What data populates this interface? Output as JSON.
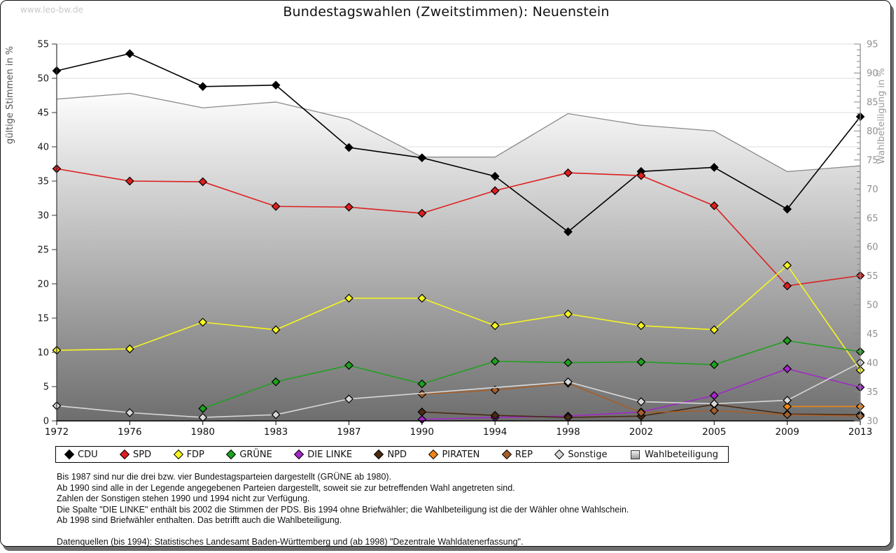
{
  "page": {
    "watermark": "www.leo-bw.de",
    "title": "Bundestagswahlen (Zweitstimmen): Neuenstein"
  },
  "chart_data": {
    "type": "line",
    "title": "Bundestagswahlen (Zweitstimmen): Neuenstein",
    "categories": [
      1972,
      1976,
      1980,
      1983,
      1987,
      1990,
      1994,
      1998,
      2002,
      2005,
      2009,
      2013
    ],
    "x_spacing": "categorical",
    "grid": true,
    "legend_position": "bottom",
    "y_left": {
      "label": "gültige Stimmen in %",
      "lim": [
        0,
        55
      ],
      "step": 5
    },
    "y_right": {
      "label": "Wahlbeteiligung in %",
      "lim": [
        30,
        95
      ],
      "step": 5,
      "minor_step": 1
    },
    "series": [
      {
        "name": "CDU",
        "axis": "left",
        "type": "line",
        "color": "#000000",
        "values": [
          51.1,
          53.6,
          48.8,
          49.0,
          39.9,
          38.4,
          35.7,
          27.6,
          36.4,
          37.0,
          30.9,
          44.4
        ]
      },
      {
        "name": "SPD",
        "axis": "left",
        "type": "line",
        "color": "#dd1f1f",
        "values": [
          36.8,
          35.0,
          34.9,
          31.3,
          31.2,
          30.3,
          33.6,
          36.2,
          35.8,
          31.4,
          19.7,
          21.2
        ]
      },
      {
        "name": "FDP",
        "axis": "left",
        "type": "line",
        "color": "#f5f520",
        "values": [
          10.3,
          10.5,
          14.4,
          13.3,
          17.9,
          17.9,
          13.9,
          15.6,
          13.9,
          13.3,
          22.7,
          7.4
        ]
      },
      {
        "name": "GRÜNE",
        "axis": "left",
        "type": "line",
        "color": "#1fa01f",
        "values": [
          null,
          null,
          1.8,
          5.7,
          8.1,
          5.4,
          8.7,
          8.5,
          8.6,
          8.2,
          11.7,
          10.1
        ]
      },
      {
        "name": "DIE LINKE",
        "axis": "left",
        "type": "line",
        "color": "#a128c8",
        "values": [
          null,
          null,
          null,
          null,
          null,
          0.2,
          0.5,
          0.7,
          1.3,
          3.7,
          7.6,
          4.9
        ]
      },
      {
        "name": "NPD",
        "axis": "left",
        "type": "line",
        "color": "#4a2a12",
        "values": [
          null,
          null,
          null,
          null,
          null,
          1.3,
          0.8,
          0.5,
          0.7,
          2.4,
          1.0,
          0.9
        ]
      },
      {
        "name": "PIRATEN",
        "axis": "left",
        "type": "line",
        "color": "#ef8615",
        "values": [
          null,
          null,
          null,
          null,
          null,
          null,
          null,
          null,
          null,
          null,
          2.1,
          2.1
        ]
      },
      {
        "name": "REP",
        "axis": "left",
        "type": "line",
        "color": "#a55f2a",
        "values": [
          null,
          null,
          null,
          null,
          null,
          3.9,
          4.5,
          5.5,
          1.2,
          1.5,
          0.9,
          0.7
        ]
      },
      {
        "name": "Sonstige",
        "axis": "left",
        "type": "line",
        "color": "#d9d9d9",
        "values": [
          2.2,
          1.2,
          0.5,
          0.9,
          3.2,
          null,
          null,
          5.7,
          2.8,
          2.5,
          3.0,
          8.5
        ]
      },
      {
        "name": "Wahlbeteiligung",
        "axis": "right",
        "type": "area",
        "color": "#8a8a8a",
        "fill_top": "#fdfdfd",
        "fill_bottom": "#6e6e6e",
        "values": [
          85.5,
          86.5,
          84.0,
          85.0,
          82.0,
          75.5,
          75.5,
          83.0,
          81.0,
          80.0,
          73.0,
          74.0
        ]
      }
    ],
    "legend": [
      {
        "label": "CDU",
        "swatch": "diamond",
        "color": "#000000"
      },
      {
        "label": "SPD",
        "swatch": "diamond",
        "color": "#dd1f1f"
      },
      {
        "label": "FDP",
        "swatch": "diamond",
        "color": "#f5f520"
      },
      {
        "label": "GRÜNE",
        "swatch": "diamond",
        "color": "#1fa01f"
      },
      {
        "label": "DIE LINKE",
        "swatch": "diamond",
        "color": "#a128c8"
      },
      {
        "label": "NPD",
        "swatch": "diamond",
        "color": "#4a2a12"
      },
      {
        "label": "PIRATEN",
        "swatch": "diamond",
        "color": "#ef8615"
      },
      {
        "label": "REP",
        "swatch": "diamond",
        "color": "#a55f2a"
      },
      {
        "label": "Sonstige",
        "swatch": "diamond",
        "color": "#d9d9d9"
      },
      {
        "label": "Wahlbeteiligung",
        "swatch": "square",
        "color": "#bbbbbb"
      }
    ]
  },
  "footnotes": {
    "lines": [
      "Bis 1987 sind nur die drei bzw. vier Bundestagsparteien dargestellt (GRÜNE ab 1980).",
      "Ab 1990 sind alle in der Legende angegebenen Parteien dargestellt, soweit sie zur betreffenden Wahl angetreten sind.",
      "Zahlen der Sonstigen stehen 1990 und 1994 nicht zur Verfügung.",
      "Die Spalte \"DIE LINKE\" enthält bis 2002 die Stimmen der PDS. Bis 1994 ohne Briefwähler; die Wahlbeteiligung ist die der Wähler ohne Wahlschein.",
      "Ab 1998 sind Briefwähler enthalten. Das betrifft auch die Wahlbeteiligung."
    ],
    "source": "Datenquellen (bis 1994): Statistisches Landesamt Baden-Württemberg und (ab 1998) \"Dezentrale Wahldatenerfassung\"."
  }
}
